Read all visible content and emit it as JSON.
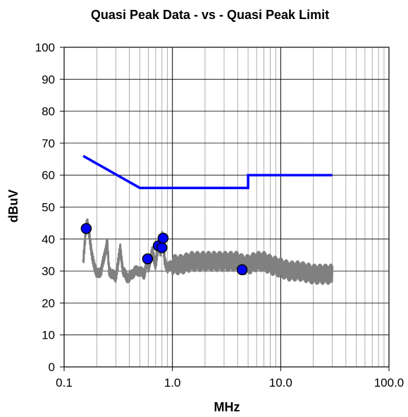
{
  "chart_data": {
    "type": "line",
    "title": "Quasi Peak Data - vs - Quasi Peak Limit",
    "xlabel": "MHz",
    "ylabel": "dBuV",
    "x_scale": "log",
    "xlim": [
      0.1,
      100
    ],
    "ylim": [
      0,
      100
    ],
    "x_ticks": [
      "0.1",
      "1.0",
      "10.0",
      "100.0"
    ],
    "y_ticks": [
      "0",
      "10",
      "20",
      "30",
      "40",
      "50",
      "60",
      "70",
      "80",
      "90",
      "100"
    ],
    "grid": true,
    "series": [
      {
        "color": "#0000ff",
        "kind": "line",
        "x": [
          0.15,
          0.5,
          5.0,
          5.0,
          30.0
        ],
        "y": [
          66,
          56,
          56,
          60,
          60
        ]
      },
      {
        "color": "#808080",
        "kind": "noisy-line",
        "x": [
          0.15,
          0.16,
          0.165,
          0.17,
          0.18,
          0.2,
          0.22,
          0.25,
          0.26,
          0.28,
          0.3,
          0.33,
          0.35,
          0.38,
          0.4,
          0.45,
          0.5,
          0.55,
          0.58,
          0.6,
          0.65,
          0.7,
          0.72,
          0.75,
          0.78,
          0.8,
          0.82,
          0.85,
          0.9,
          1.0,
          1.2,
          1.5,
          2.0,
          2.5,
          3.0,
          4.0,
          4.5,
          5.0,
          6.0,
          7.0,
          8.0,
          10.0,
          12.0,
          15.0,
          20.0,
          25.0,
          30.0
        ],
        "y": [
          33,
          44,
          45,
          42,
          35,
          29,
          30,
          39,
          30,
          29,
          28,
          37,
          30,
          28,
          28,
          30,
          30,
          29,
          33,
          31,
          36,
          32,
          35,
          38,
          36,
          42,
          38,
          33,
          31,
          32,
          32,
          33,
          33,
          33,
          33,
          33,
          32,
          32,
          33,
          33,
          32,
          31,
          30,
          30,
          29,
          29,
          29
        ],
        "band": 3
      },
      {
        "color": "#0000ff",
        "kind": "points",
        "x": [
          0.16,
          0.59,
          0.74,
          0.8,
          0.82,
          4.4
        ],
        "y": [
          43.3,
          33.8,
          37.9,
          37.3,
          40.3,
          30.4
        ]
      }
    ]
  }
}
